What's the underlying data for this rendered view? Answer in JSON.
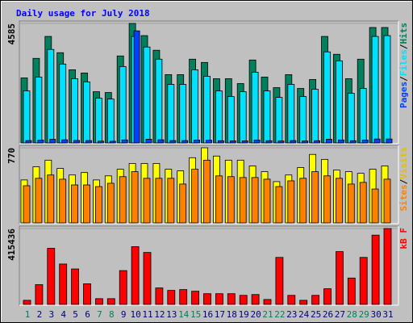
{
  "title": "Daily usage for July 2018",
  "categories": [
    "1",
    "2",
    "3",
    "4",
    "5",
    "6",
    "7",
    "8",
    "9",
    "10",
    "11",
    "12",
    "13",
    "14",
    "15",
    "16",
    "17",
    "18",
    "19",
    "20",
    "21",
    "22",
    "23",
    "24",
    "25",
    "26",
    "27",
    "28",
    "29",
    "30",
    "31"
  ],
  "weekends": [
    "1",
    "7",
    "8",
    "14",
    "15",
    "21",
    "22",
    "28",
    "29"
  ],
  "weekend_color": "#00805c",
  "weekday_color": "#000080",
  "chart_data": [
    {
      "type": "bar",
      "legend_separator": "/",
      "ylim": [
        0,
        4585
      ],
      "yticks": [
        4585
      ],
      "series": [
        {
          "name": "Hits",
          "color": "#00805c",
          "values": [
            2495,
            3244,
            4086,
            3462,
            2807,
            2682,
            1965,
            1934,
            3337,
            4585,
            4117,
            3556,
            2620,
            2620,
            3213,
            3088,
            2464,
            2464,
            2277,
            3181,
            2526,
            2121,
            2620,
            2090,
            2433,
            4086,
            3400,
            2464,
            3213,
            4429,
            4429
          ]
        },
        {
          "name": "Files",
          "color": "#00e0ff",
          "values": [
            1996,
            2526,
            3587,
            3025,
            2464,
            2339,
            1715,
            1684,
            2932,
            4086,
            3680,
            3213,
            2246,
            2246,
            2807,
            2558,
            1996,
            1778,
            1965,
            2714,
            1996,
            1747,
            2246,
            1778,
            2059,
            3493,
            3150,
            1903,
            2090,
            4086,
            4117
          ]
        },
        {
          "name": "Pages",
          "color": "#0040ff",
          "values": [
            90,
            110,
            140,
            120,
            95,
            90,
            70,
            65,
            115,
            4300,
            140,
            120,
            90,
            90,
            110,
            105,
            85,
            80,
            80,
            110,
            85,
            75,
            90,
            75,
            85,
            140,
            115,
            85,
            110,
            150,
            150
          ]
        }
      ]
    },
    {
      "type": "bar",
      "legend_separator": "/",
      "ylim": [
        0,
        770
      ],
      "yticks": [
        770
      ],
      "series": [
        {
          "name": "Visits",
          "color": "#ffff00",
          "values": [
            440,
            575,
            643,
            558,
            491,
            516,
            440,
            482,
            550,
            609,
            609,
            609,
            550,
            533,
            668,
            770,
            685,
            643,
            643,
            584,
            525,
            423,
            491,
            567,
            702,
            651,
            541,
            525,
            508,
            550,
            584
          ]
        },
        {
          "name": "Sites",
          "color": "#ff8000",
          "values": [
            381,
            457,
            491,
            448,
            389,
            389,
            372,
            406,
            474,
            525,
            457,
            457,
            457,
            398,
            550,
            643,
            482,
            474,
            465,
            465,
            448,
            372,
            431,
            457,
            525,
            482,
            457,
            398,
            415,
            347,
            448
          ]
        }
      ]
    },
    {
      "type": "bar",
      "ylim": [
        0,
        415436
      ],
      "yticks": [
        415436
      ],
      "series": [
        {
          "name": "kB F",
          "color": "#ff0000",
          "values": [
            22578,
            108374,
            307061,
            221264,
            194171,
            112890,
            31609,
            31609,
            185140,
            316092,
            284483,
            90312,
            76765,
            81281,
            72250,
            58703,
            58703,
            58703,
            49672,
            54187,
            27094,
            257390,
            49672,
            22578,
            49672,
            85797,
            288998,
            144499,
            257390,
            379314,
            415436
          ]
        }
      ]
    }
  ]
}
